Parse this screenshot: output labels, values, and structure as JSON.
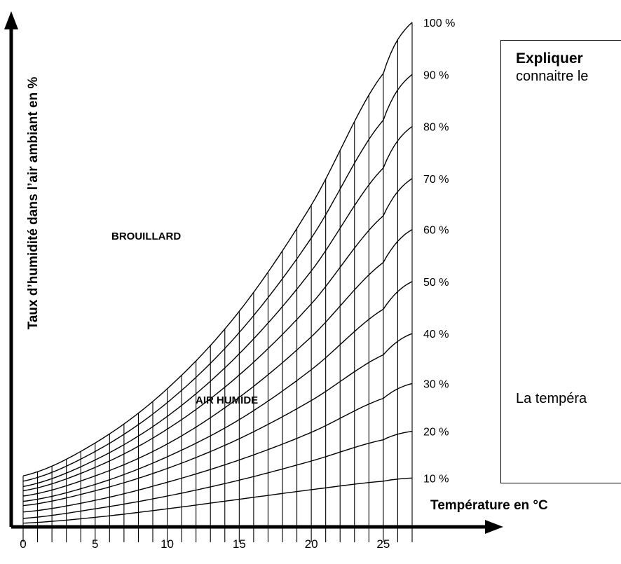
{
  "chart_data": {
    "type": "line",
    "title": "",
    "xlabel": "Température en °C",
    "ylabel": "Taux d’humidité dans l’air ambiant en %",
    "x_ticks": [
      "0",
      "5",
      "10",
      "15",
      "20",
      "25"
    ],
    "xlim": [
      0,
      27
    ],
    "grid": "vertical lines every 1 °C",
    "series": [
      {
        "name": "10 %",
        "x": [
          0,
          5,
          10,
          15,
          20,
          25,
          27
        ],
        "y": [
          0.35,
          0.9,
          1.7,
          2.6,
          3.5,
          4.3,
          4.6
        ]
      },
      {
        "name": "20 %",
        "x": [
          0,
          5,
          10,
          15,
          20,
          25,
          27
        ],
        "y": [
          0.8,
          1.7,
          2.9,
          4.4,
          6.2,
          8.2,
          9.0
        ]
      },
      {
        "name": "30 %",
        "x": [
          0,
          5,
          10,
          15,
          20,
          25,
          27
        ],
        "y": [
          1.4,
          2.5,
          4.2,
          6.3,
          8.9,
          12.1,
          13.5
        ]
      },
      {
        "name": "40 %",
        "x": [
          0,
          5,
          10,
          15,
          20,
          25,
          27
        ],
        "y": [
          2.0,
          3.4,
          5.5,
          8.3,
          11.9,
          16.2,
          18.2
        ]
      },
      {
        "name": "50 %",
        "x": [
          0,
          5,
          10,
          15,
          20,
          25,
          27
        ],
        "y": [
          2.4,
          4.0,
          6.6,
          10.1,
          14.8,
          20.5,
          23.1
        ]
      },
      {
        "name": "60 %",
        "x": [
          0,
          5,
          10,
          15,
          20,
          25,
          27
        ],
        "y": [
          2.9,
          4.8,
          7.8,
          12.2,
          17.9,
          24.9,
          28.0
        ]
      },
      {
        "name": "70 %",
        "x": [
          0,
          5,
          10,
          15,
          20,
          25,
          27
        ],
        "y": [
          3.4,
          5.6,
          9.2,
          14.3,
          21.0,
          29.3,
          32.8
        ]
      },
      {
        "name": "80 %",
        "x": [
          0,
          5,
          10,
          15,
          20,
          25,
          27
        ],
        "y": [
          3.8,
          6.3,
          10.4,
          16.3,
          24.1,
          33.8,
          37.7
        ]
      },
      {
        "name": "90 %",
        "x": [
          0,
          5,
          10,
          15,
          20,
          25,
          27
        ],
        "y": [
          4.3,
          7.1,
          11.7,
          18.3,
          27.2,
          38.3,
          42.6
        ]
      },
      {
        "name": "100 %",
        "x": [
          0,
          5,
          10,
          15,
          20,
          25,
          27
        ],
        "y": [
          4.8,
          7.9,
          13.0,
          20.3,
          30.3,
          42.7,
          47.5
        ]
      }
    ],
    "annotations": [
      "BROUILLARD",
      "AIR HUMIDE"
    ]
  },
  "box": {
    "heading": "Expliquer",
    "line2": "connaitre le",
    "line3": "La tempéra"
  }
}
